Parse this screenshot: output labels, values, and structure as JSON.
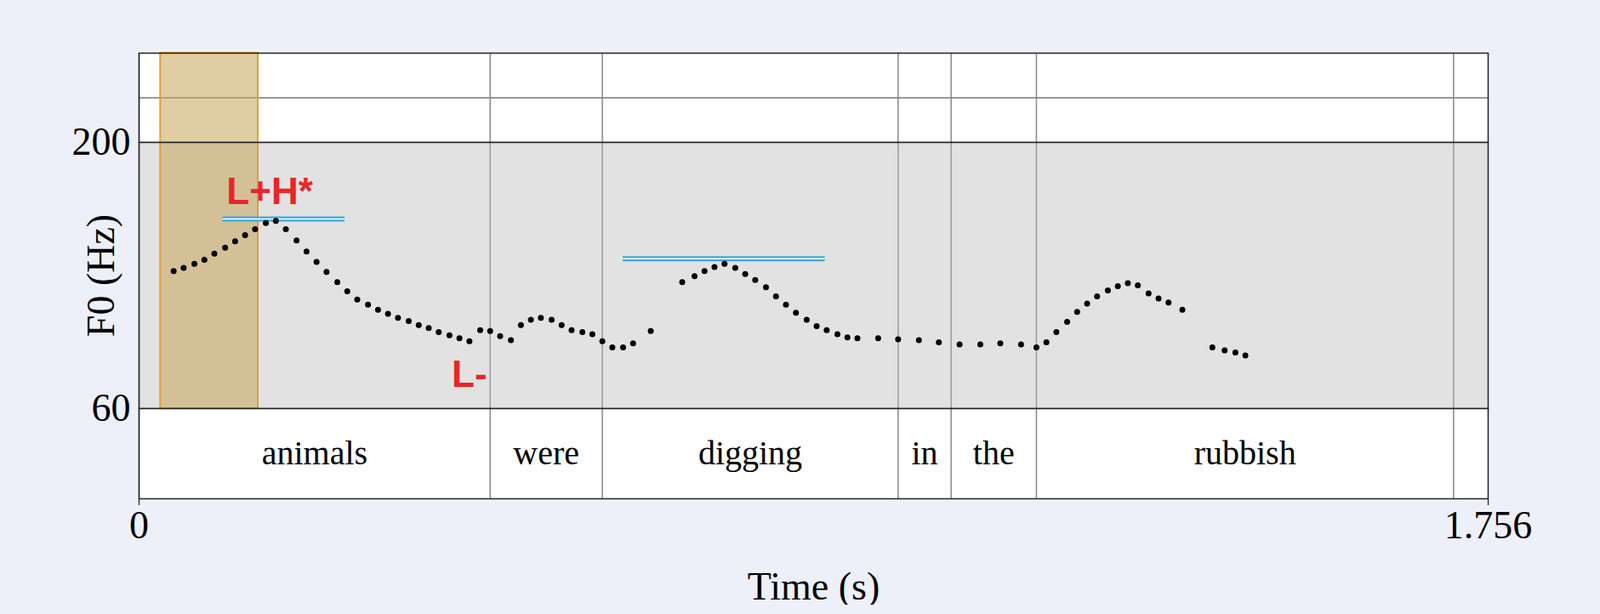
{
  "chart_data": {
    "type": "scatter",
    "marker": "dot",
    "color": "#000000",
    "x_label": "Time (s)",
    "y_label": "F0 (Hz)",
    "xlim": [
      0,
      1.756
    ],
    "xticks": [
      0,
      1.756
    ],
    "ylim": [
      60,
      200
    ],
    "yticks": [
      60,
      200
    ],
    "x": [
      0.045,
      0.058,
      0.072,
      0.085,
      0.098,
      0.112,
      0.125,
      0.138,
      0.151,
      0.165,
      0.178,
      0.191,
      0.205,
      0.218,
      0.231,
      0.244,
      0.258,
      0.271,
      0.284,
      0.298,
      0.311,
      0.324,
      0.337,
      0.351,
      0.364,
      0.377,
      0.39,
      0.404,
      0.417,
      0.43,
      0.444,
      0.457,
      0.47,
      0.484,
      0.497,
      0.51,
      0.523,
      0.537,
      0.55,
      0.563,
      0.577,
      0.59,
      0.603,
      0.616,
      0.63,
      0.643,
      0.666,
      0.707,
      0.723,
      0.736,
      0.749,
      0.762,
      0.776,
      0.789,
      0.802,
      0.816,
      0.829,
      0.842,
      0.855,
      0.869,
      0.882,
      0.895,
      0.909,
      0.922,
      0.935,
      0.962,
      0.988,
      1.015,
      1.041,
      1.068,
      1.095,
      1.121,
      1.148,
      1.168,
      1.181,
      1.194,
      1.208,
      1.221,
      1.234,
      1.247,
      1.261,
      1.274,
      1.287,
      1.3,
      1.314,
      1.327,
      1.34,
      1.358,
      1.397,
      1.413,
      1.427,
      1.44
    ],
    "values": [
      132.4,
      134.0,
      136.2,
      138.3,
      141.5,
      144.7,
      148.0,
      151.2,
      154.4,
      157.6,
      158.7,
      154.4,
      148.5,
      142.6,
      137.2,
      131.9,
      126.5,
      121.7,
      117.4,
      114.7,
      112.0,
      109.9,
      107.7,
      106.1,
      104.0,
      102.4,
      100.2,
      98.6,
      97.0,
      95.4,
      101.3,
      100.8,
      98.1,
      96.0,
      104.0,
      106.7,
      107.7,
      106.7,
      104.0,
      101.3,
      100.2,
      99.1,
      95.4,
      92.2,
      92.2,
      94.3,
      100.8,
      126.5,
      129.7,
      132.4,
      134.5,
      136.2,
      134.0,
      130.8,
      127.6,
      123.8,
      119.0,
      114.7,
      110.4,
      106.7,
      103.4,
      101.3,
      99.1,
      97.5,
      97.0,
      97.0,
      96.5,
      96.0,
      94.9,
      93.8,
      93.8,
      94.3,
      93.8,
      92.2,
      94.9,
      100.2,
      105.6,
      110.9,
      115.2,
      119.0,
      122.2,
      124.4,
      126.0,
      124.9,
      120.6,
      117.9,
      115.8,
      112.0,
      92.2,
      90.6,
      89.5,
      87.9
    ],
    "words": [
      {
        "text": "animals",
        "start": 0,
        "end": 0.457
      },
      {
        "text": "were",
        "start": 0.457,
        "end": 0.603
      },
      {
        "text": "digging",
        "start": 0.603,
        "end": 0.988
      },
      {
        "text": "in",
        "start": 0.988,
        "end": 1.057
      },
      {
        "text": "the",
        "start": 1.057,
        "end": 1.168
      },
      {
        "text": "rubbish",
        "start": 1.168,
        "end": 1.711
      }
    ],
    "annotations": [
      {
        "text": "L+H*",
        "x": 0.17,
        "y": 174,
        "color": "#e8262a"
      },
      {
        "text": "L-",
        "x": 0.43,
        "y": 77.7,
        "color": "#e8262a"
      }
    ],
    "reference_lines": [
      {
        "x": [
          0.109,
          0.268
        ],
        "y": 159.8,
        "color": "#3aa8d8"
      },
      {
        "x": [
          0.63,
          0.893
        ],
        "y": 138.8,
        "color": "#3aa8d8"
      }
    ],
    "highlight": {
      "x": [
        0.028,
        0.155
      ],
      "color": "#c9a45a"
    }
  }
}
